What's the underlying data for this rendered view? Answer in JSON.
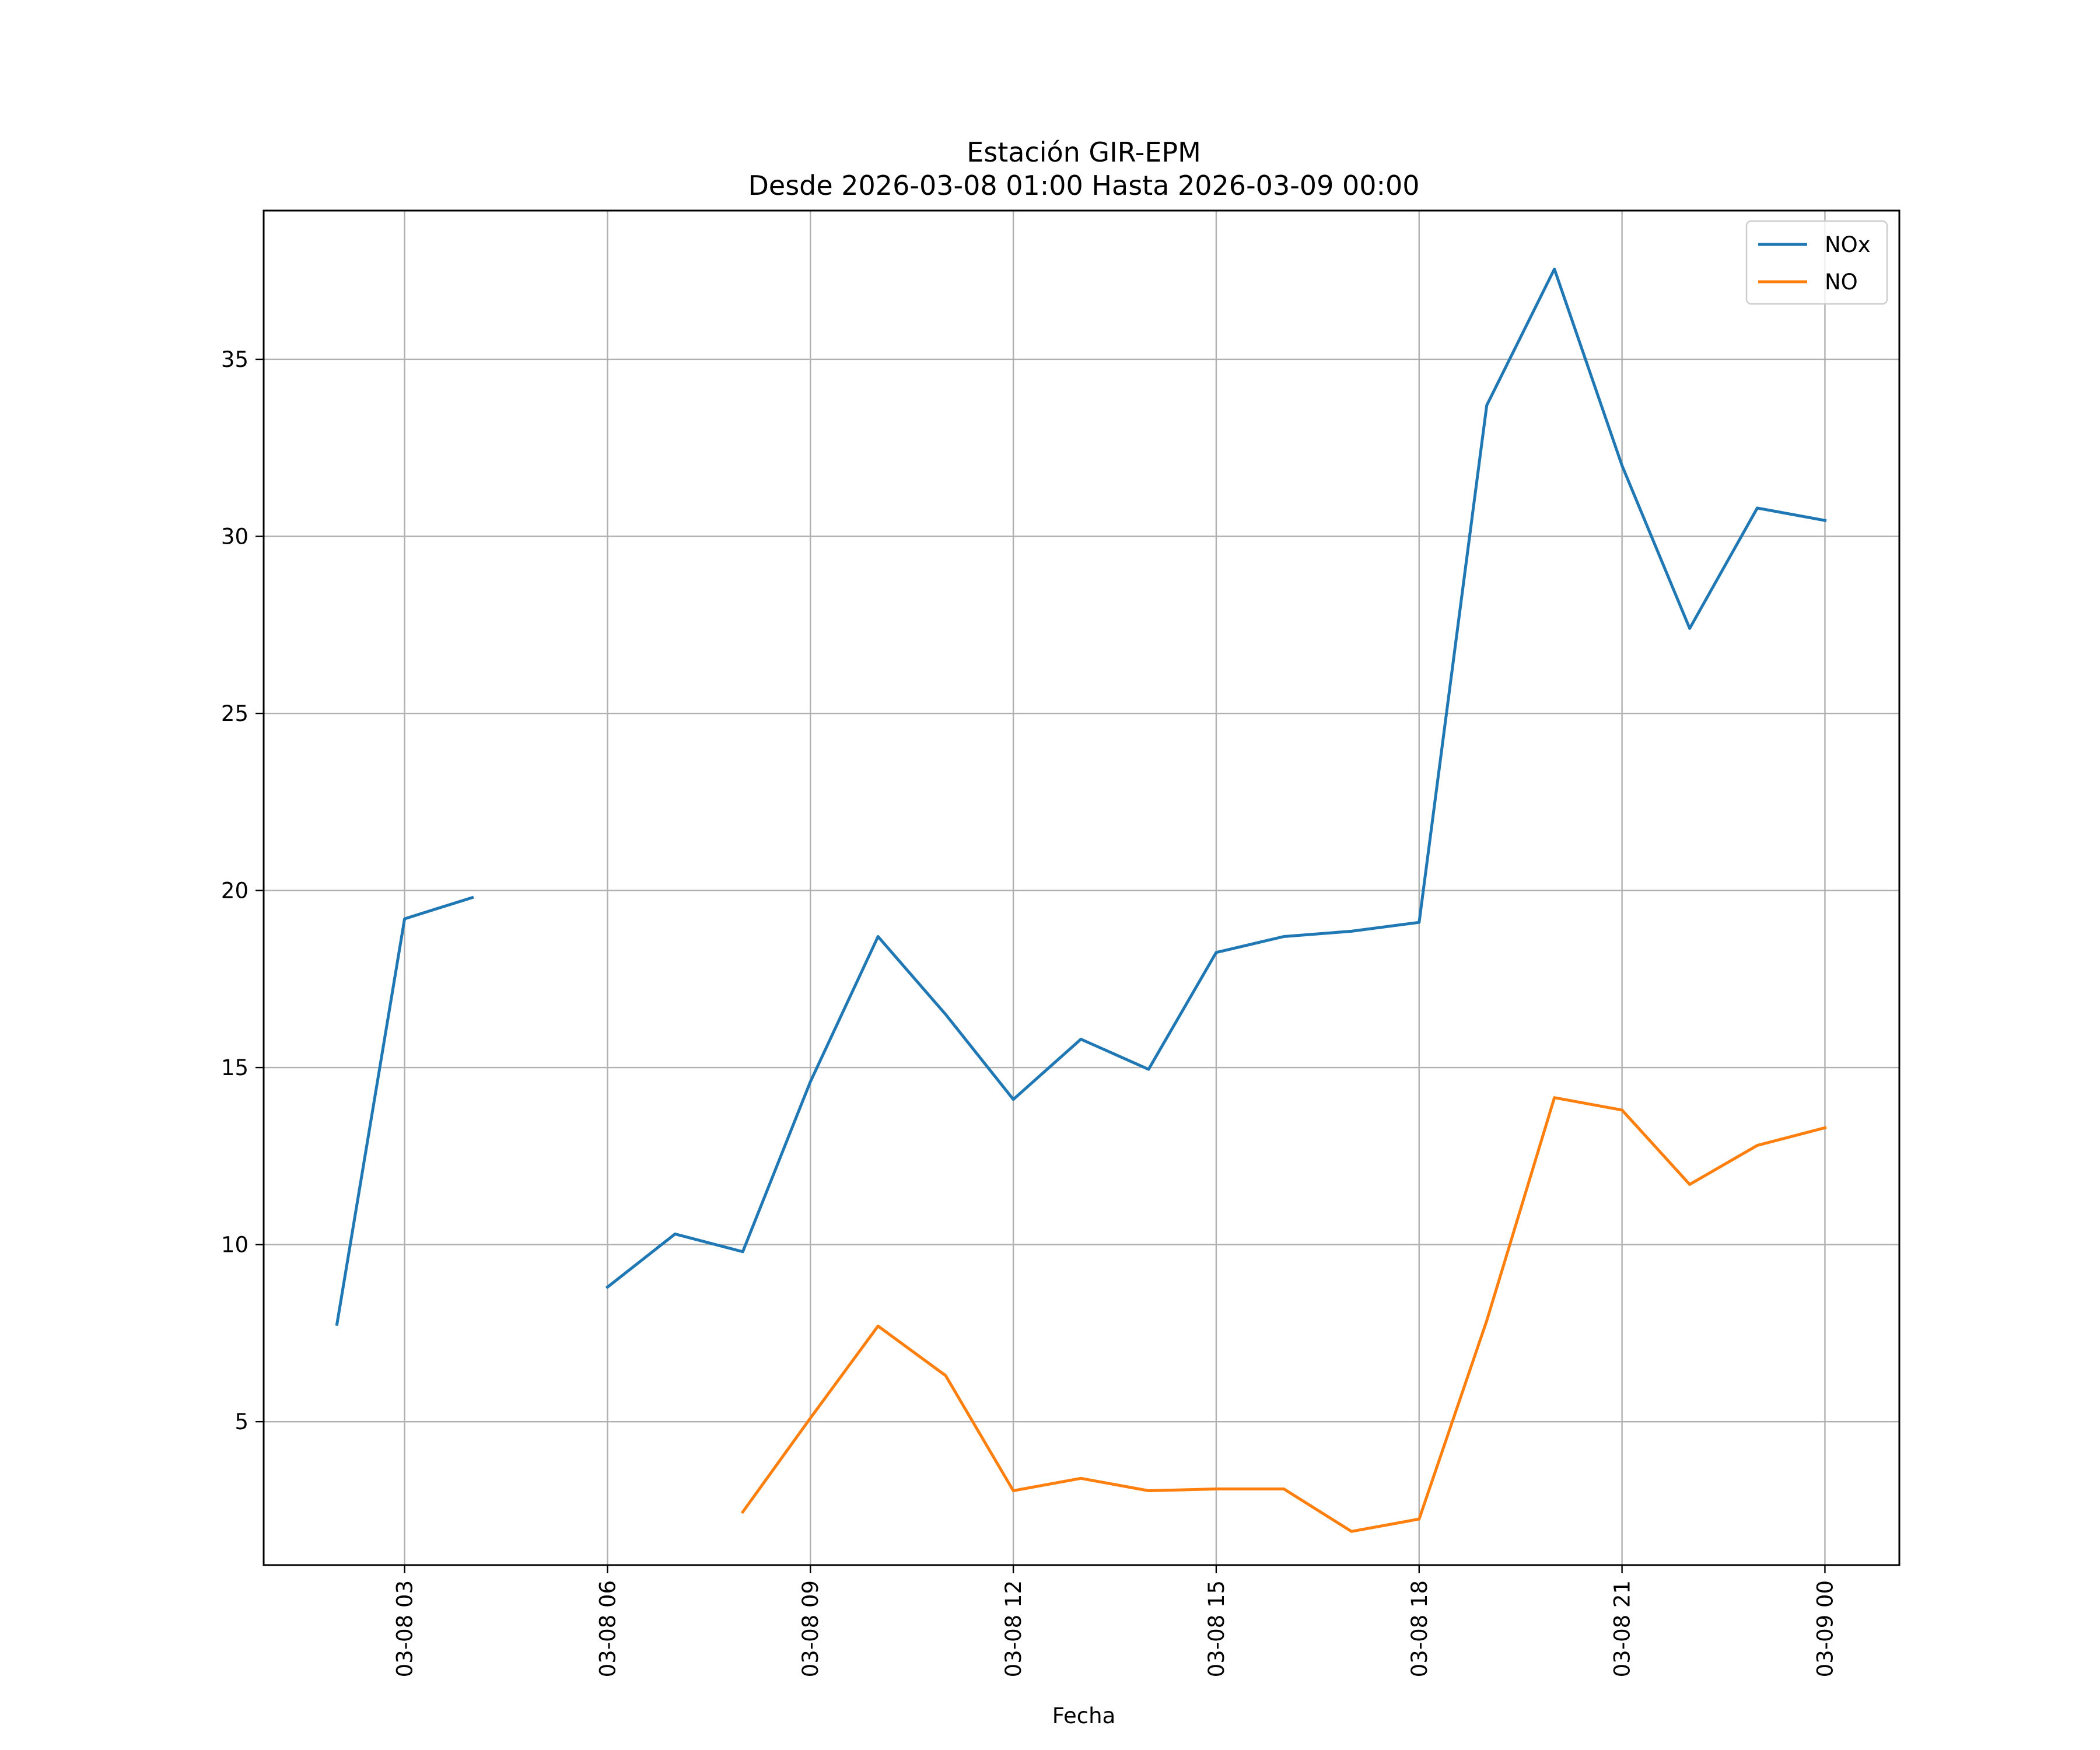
{
  "chart_data": {
    "type": "line",
    "title": "Estación GIR-EPM",
    "subtitle": "Desde 2026-03-08 01:00 Hasta 2026-03-09 00:00",
    "xlabel": "Fecha",
    "ylabel": "",
    "x_ticks": [
      "03-08 03",
      "03-08 06",
      "03-08 09",
      "03-08 12",
      "03-08 15",
      "03-08 18",
      "03-08 21",
      "03-09 00"
    ],
    "x_tick_hours": [
      3,
      6,
      9,
      12,
      15,
      18,
      21,
      24
    ],
    "y_ticks": [
      5,
      10,
      15,
      20,
      25,
      30,
      35
    ],
    "xlim": [
      "2026-03-08 00:55",
      "2026-03-09 01:06"
    ],
    "ylim": [
      0.95,
      39.2
    ],
    "grid": true,
    "legend_position": "top-right",
    "x": [
      "2026-03-08 02:00",
      "2026-03-08 03:00",
      "2026-03-08 04:00",
      "2026-03-08 05:00",
      "2026-03-08 06:00",
      "2026-03-08 07:00",
      "2026-03-08 08:00",
      "2026-03-08 09:00",
      "2026-03-08 10:00",
      "2026-03-08 11:00",
      "2026-03-08 12:00",
      "2026-03-08 13:00",
      "2026-03-08 14:00",
      "2026-03-08 15:00",
      "2026-03-08 16:00",
      "2026-03-08 17:00",
      "2026-03-08 18:00",
      "2026-03-08 19:00",
      "2026-03-08 20:00",
      "2026-03-08 21:00",
      "2026-03-08 22:00",
      "2026-03-08 23:00",
      "2026-03-09 00:00"
    ],
    "series": [
      {
        "name": "NOx",
        "color": "#1f77b4",
        "values": [
          7.75,
          19.2,
          19.8,
          null,
          8.8,
          10.3,
          9.8,
          14.6,
          18.7,
          16.5,
          14.1,
          15.8,
          14.95,
          18.25,
          18.7,
          18.85,
          19.1,
          33.7,
          37.55,
          32.0,
          27.4,
          30.8,
          30.45
        ]
      },
      {
        "name": "NO",
        "color": "#ff7f0e",
        "values": [
          null,
          null,
          null,
          null,
          null,
          null,
          2.45,
          5.1,
          7.7,
          6.3,
          3.05,
          3.4,
          3.05,
          3.1,
          3.1,
          1.9,
          2.25,
          7.85,
          14.15,
          13.8,
          11.7,
          12.8,
          13.3
        ]
      }
    ]
  }
}
